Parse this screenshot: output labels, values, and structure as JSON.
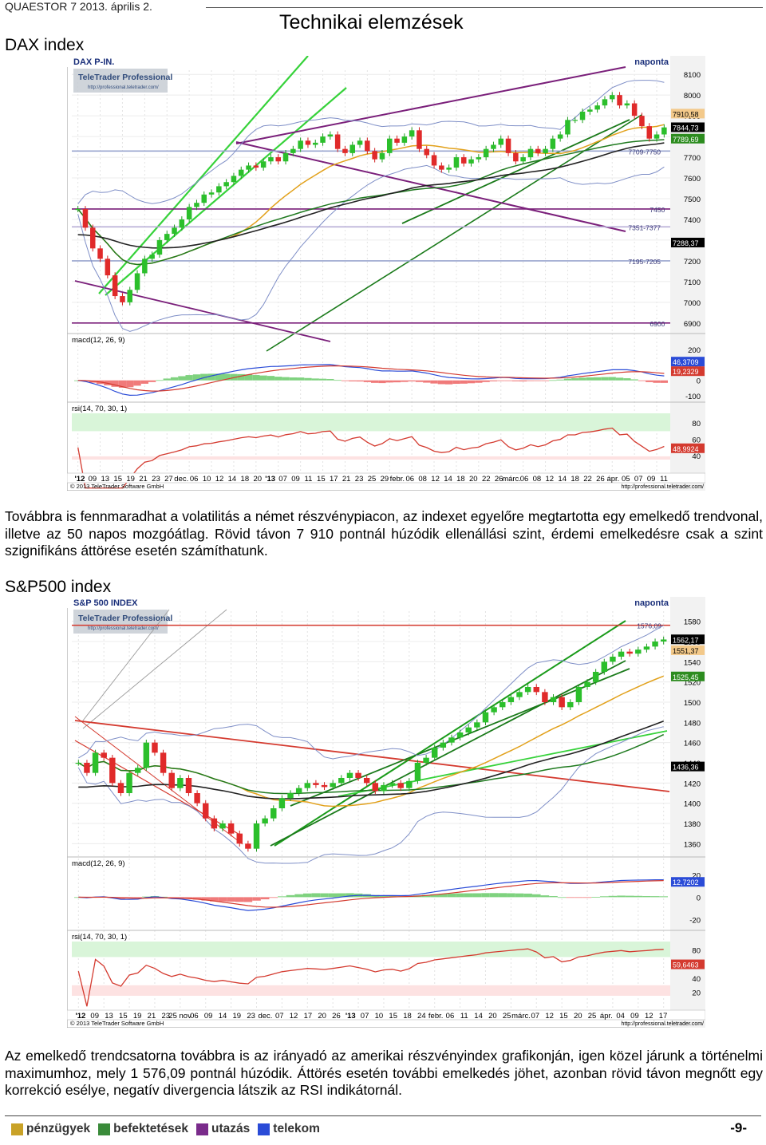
{
  "header": {
    "publication": "QUAESTOR 7   2013. április 2.",
    "title": "Technikai elemzések"
  },
  "dax": {
    "section_title": "DAX index",
    "chart_data": {
      "type": "candlestick",
      "title": "DAX P-IN.",
      "period": "naponta",
      "brand": "TeleTrader Professional",
      "brand_url": "http://professional.teletrader.com/",
      "copyright": "© 2013 TeleTrader Software GmbH",
      "site_url": "http://professional.teletrader.com/",
      "ylim": [
        6880,
        8120
      ],
      "y_ticks": [
        8100,
        8000,
        7900,
        7800,
        7700,
        7600,
        7500,
        7400,
        7300,
        7200,
        7100,
        7000,
        6900
      ],
      "price_badges": [
        {
          "value": 7910.58,
          "label": "7910,58",
          "color": "#f3c98a"
        },
        {
          "value": 7844.73,
          "label": "7844,73",
          "color": "#000000"
        },
        {
          "value": 7789.69,
          "label": "7789,69",
          "color": "#2c8c1f"
        },
        {
          "value": 7288.37,
          "label": "7288,37",
          "color": "#000000"
        }
      ],
      "levels": [
        {
          "value": 7730,
          "label": "7709-7750",
          "color": "#9aa6cf"
        },
        {
          "value": 7450,
          "label": "7450",
          "color": "#7a1f7a"
        },
        {
          "value": 7364,
          "label": "7351-7377",
          "color": "#b7aed6"
        },
        {
          "value": 7200,
          "label": "7195-7205",
          "color": "#9aa6cf"
        },
        {
          "value": 6900,
          "label": "6900",
          "color": "#7a1f7a"
        }
      ],
      "x_labels": [
        "'12",
        "09",
        "13",
        "15",
        "19",
        "21",
        "23",
        "27",
        "dec.",
        "06",
        "10",
        "12",
        "14",
        "18",
        "20",
        "'13",
        "07",
        "09",
        "11",
        "15",
        "17",
        "21",
        "23",
        "25",
        "29",
        "febr.",
        "06",
        "08",
        "12",
        "14",
        "18",
        "20",
        "22",
        "26",
        "márc.",
        "06",
        "08",
        "12",
        "14",
        "18",
        "22",
        "26",
        "ápr.",
        "05",
        "07",
        "09",
        "11"
      ],
      "close": [
        7450,
        7360,
        7260,
        7210,
        7130,
        7030,
        7000,
        7060,
        7140,
        7210,
        7230,
        7300,
        7330,
        7360,
        7400,
        7460,
        7480,
        7520,
        7530,
        7560,
        7580,
        7610,
        7640,
        7660,
        7650,
        7680,
        7700,
        7680,
        7720,
        7740,
        7780,
        7760,
        7770,
        7800,
        7810,
        7740,
        7720,
        7760,
        7780,
        7730,
        7690,
        7720,
        7790,
        7770,
        7800,
        7830,
        7740,
        7710,
        7660,
        7640,
        7650,
        7700,
        7670,
        7690,
        7700,
        7740,
        7760,
        7790,
        7720,
        7680,
        7700,
        7740,
        7720,
        7740,
        7790,
        7810,
        7880,
        7880,
        7920,
        7930,
        7950,
        7980,
        8000,
        7950,
        7960,
        7900,
        7850,
        7790,
        7810,
        7844
      ],
      "macd": {
        "label": "macd(12, 26, 9)",
        "y_ticks": [
          200,
          100,
          0,
          -100
        ],
        "ylim": [
          -130,
          230
        ],
        "badges": [
          {
            "value": 46.3709,
            "label": "46,3709",
            "color": "#2a4bd7"
          },
          {
            "value": 19.2329,
            "label": "19,2329",
            "color": "#d43a2f"
          }
        ]
      },
      "rsi": {
        "label": "rsi(14, 70, 30, 1)",
        "y_ticks": [
          80,
          60,
          40
        ],
        "ylim": [
          35,
          92
        ],
        "badges": [
          {
            "value": 48.9924,
            "label": "48,9924",
            "color": "#d43a2f"
          }
        ]
      }
    },
    "text": "Továbbra is fennmaradhat a volatilitás a német részvénypiacon, az indexet egyelőre megtartotta egy emelkedő trendvonal, illetve az 50 napos mozgóátlag. Rövid távon 7 910 pontnál húzódik ellenállási szint, érdemi emelkedésre csak a szint szignifikáns áttörése esetén számíthatunk."
  },
  "sp500": {
    "section_title": "S&P500 index",
    "chart_data": {
      "type": "candlestick",
      "title": "S&P 500 INDEX",
      "period": "naponta",
      "brand": "TeleTrader Professional",
      "brand_url": "http://professional.teletrader.com/",
      "copyright": "© 2013 TeleTrader Software GmbH",
      "site_url": "http://professional.teletrader.com/",
      "ylim": [
        1350,
        1590
      ],
      "y_ticks": [
        1580,
        1560,
        1540,
        1520,
        1500,
        1480,
        1460,
        1440,
        1420,
        1400,
        1380,
        1360
      ],
      "price_badges": [
        {
          "value": 1562.17,
          "label": "1562,17",
          "color": "#000000"
        },
        {
          "value": 1551.37,
          "label": "1551,37",
          "color": "#f3c98a"
        },
        {
          "value": 1525.45,
          "label": "1525,45",
          "color": "#2c8c1f"
        },
        {
          "value": 1436.36,
          "label": "1436,36",
          "color": "#000000"
        }
      ],
      "levels": [
        {
          "value": 1576.09,
          "label": "1576,09",
          "color": "#d43a2f"
        }
      ],
      "x_labels": [
        "'12",
        "09",
        "13",
        "15",
        "19",
        "21",
        "23",
        "25 nov",
        "06",
        "09",
        "14",
        "19",
        "23",
        "dec.",
        "07",
        "12",
        "17",
        "20",
        "26",
        "'13",
        "07",
        "10",
        "15",
        "18",
        "24",
        "febr.",
        "06",
        "11",
        "14",
        "20",
        "25",
        "márc.",
        "07",
        "12",
        "15",
        "20",
        "25",
        "ápr.",
        "04",
        "09",
        "12",
        "17"
      ],
      "close": [
        1440,
        1430,
        1450,
        1445,
        1420,
        1410,
        1430,
        1435,
        1460,
        1450,
        1430,
        1415,
        1425,
        1410,
        1400,
        1385,
        1375,
        1380,
        1370,
        1360,
        1355,
        1380,
        1385,
        1395,
        1405,
        1410,
        1415,
        1420,
        1418,
        1416,
        1420,
        1425,
        1430,
        1425,
        1420,
        1412,
        1418,
        1420,
        1415,
        1422,
        1440,
        1445,
        1455,
        1460,
        1465,
        1470,
        1475,
        1480,
        1490,
        1495,
        1500,
        1505,
        1510,
        1515,
        1510,
        1500,
        1505,
        1495,
        1500,
        1515,
        1520,
        1530,
        1540,
        1545,
        1550,
        1548,
        1552,
        1555,
        1560,
        1562
      ],
      "macd": {
        "label": "macd(12, 26, 9)",
        "y_ticks": [
          20,
          0,
          -20
        ],
        "ylim": [
          -24,
          26
        ],
        "badges": [
          {
            "value": 12.7202,
            "label": "12,7202",
            "color": "#2a4bd7"
          }
        ]
      },
      "rsi": {
        "label": "rsi(14, 70, 30, 1)",
        "y_ticks": [
          80,
          60,
          40,
          20
        ],
        "ylim": [
          15,
          92
        ],
        "badges": [
          {
            "value": 59.6463,
            "label": "59,6463",
            "color": "#d43a2f"
          }
        ]
      }
    },
    "text": "Az emelkedő trendcsatorna továbbra is az irányadó az amerikai részvényindex grafikonján, igen közel járunk a történelmi maximumhoz, mely 1 576,09 pontnál húzódik. Áttörés esetén további emelkedés jöhet, azonban rövid távon megnőtt egy korrekció esélye, negatív divergencia látszik az RSI indikátornál."
  },
  "footer": {
    "nav": [
      {
        "label": "pénzügyek",
        "icon": "rings-icon",
        "color": "#c9a227"
      },
      {
        "label": "befektetések",
        "icon": "chart-icon",
        "color": "#3a8b3a"
      },
      {
        "label": "utazás",
        "icon": "compass-icon",
        "color": "#7a2b8b"
      },
      {
        "label": "telekom",
        "icon": "phone-icon",
        "color": "#2a4bd7"
      }
    ],
    "page_number": "-9-"
  }
}
